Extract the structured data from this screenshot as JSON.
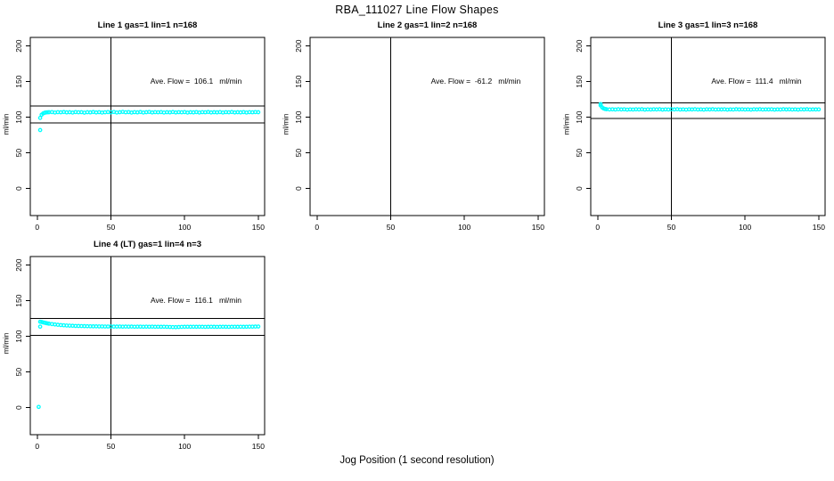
{
  "page_title": "RBA_111027  Line Flow Shapes",
  "xlabel": "Jog Position (1 second resolution)",
  "point_color": "#00FFFF",
  "line_color": "#000000",
  "chart_data": [
    {
      "id": "line1",
      "type": "scatter",
      "title": "Line 1 gas=1 lin=1 n=168",
      "annotation": "Ave. Flow =  106.1   ml/min",
      "ave_flow": 106.1,
      "line": 1,
      "gas": 1,
      "lin": 1,
      "n": 168,
      "ylabel": "ml/min",
      "x_ticks": [
        0,
        50,
        100,
        150
      ],
      "y_ticks": [
        0,
        50,
        100,
        150,
        200
      ],
      "xlim": [
        -4.7,
        154.3
      ],
      "ylim": [
        -38,
        212
      ],
      "vline_x": 50,
      "hlines": [
        115.5,
        92
      ],
      "grid": false,
      "marker": "open-circle",
      "points": [
        [
          2,
          82
        ],
        [
          2,
          99
        ],
        [
          3,
          103.5
        ],
        [
          4,
          105.3
        ],
        [
          5,
          106.2
        ],
        [
          6,
          106.7
        ],
        [
          7,
          106.9
        ],
        [
          8,
          107.0
        ],
        [
          10,
          107.2
        ],
        [
          12,
          106.6
        ],
        [
          14,
          107.1
        ],
        [
          16,
          106.9
        ],
        [
          18,
          107.3
        ],
        [
          20,
          106.8
        ],
        [
          22,
          107.0
        ],
        [
          24,
          106.5
        ],
        [
          26,
          107.2
        ],
        [
          28,
          106.9
        ],
        [
          30,
          107.1
        ],
        [
          32,
          106.4
        ],
        [
          34,
          107.0
        ],
        [
          36,
          106.8
        ],
        [
          38,
          107.3
        ],
        [
          40,
          106.7
        ],
        [
          42,
          107.1
        ],
        [
          44,
          106.5
        ],
        [
          46,
          106.9
        ],
        [
          48,
          107.2
        ],
        [
          50,
          106.8
        ],
        [
          52,
          107.4
        ],
        [
          54,
          106.6
        ],
        [
          56,
          107.0
        ],
        [
          58,
          107.5
        ],
        [
          60,
          106.9
        ],
        [
          62,
          107.2
        ],
        [
          64,
          106.5
        ],
        [
          66,
          107.1
        ],
        [
          68,
          106.8
        ],
        [
          70,
          107.3
        ],
        [
          72,
          106.6
        ],
        [
          74,
          107.0
        ],
        [
          76,
          107.4
        ],
        [
          78,
          106.7
        ],
        [
          80,
          107.1
        ],
        [
          82,
          106.9
        ],
        [
          84,
          107.2
        ],
        [
          86,
          106.6
        ],
        [
          88,
          107.0
        ],
        [
          90,
          106.8
        ],
        [
          92,
          107.3
        ],
        [
          94,
          106.7
        ],
        [
          96,
          107.1
        ],
        [
          98,
          106.9
        ],
        [
          100,
          107.2
        ],
        [
          102,
          106.5
        ],
        [
          104,
          107.0
        ],
        [
          106,
          106.8
        ],
        [
          108,
          107.2
        ],
        [
          110,
          106.6
        ],
        [
          112,
          107.1
        ],
        [
          114,
          106.9
        ],
        [
          116,
          107.3
        ],
        [
          118,
          106.7
        ],
        [
          120,
          107.0
        ],
        [
          122,
          106.8
        ],
        [
          124,
          107.2
        ],
        [
          126,
          106.6
        ],
        [
          128,
          107.1
        ],
        [
          130,
          106.9
        ],
        [
          132,
          107.3
        ],
        [
          134,
          106.7
        ],
        [
          136,
          107.0
        ],
        [
          138,
          106.8
        ],
        [
          140,
          107.2
        ],
        [
          142,
          106.6
        ],
        [
          144,
          107.1
        ],
        [
          146,
          106.9
        ],
        [
          148,
          107.2
        ],
        [
          150,
          107.0
        ]
      ]
    },
    {
      "id": "line2",
      "type": "scatter",
      "title": "Line 2 gas=1 lin=2 n=168",
      "annotation": "Ave. Flow =  -61.2   ml/min",
      "ave_flow": -61.2,
      "line": 2,
      "gas": 1,
      "lin": 2,
      "n": 168,
      "ylabel": "ml/min",
      "x_ticks": [
        0,
        50,
        100,
        150
      ],
      "y_ticks": [
        0,
        50,
        100,
        150,
        200
      ],
      "xlim": [
        -4.7,
        154.3
      ],
      "ylim": [
        -38,
        212
      ],
      "vline_x": 50,
      "hlines": [],
      "grid": false,
      "marker": "open-circle",
      "points": []
    },
    {
      "id": "line3",
      "type": "scatter",
      "title": "Line 3 gas=1 lin=3 n=168",
      "annotation": "Ave. Flow =  111.4   ml/min",
      "ave_flow": 111.4,
      "line": 3,
      "gas": 1,
      "lin": 3,
      "n": 168,
      "ylabel": "ml/min",
      "x_ticks": [
        0,
        50,
        100,
        150
      ],
      "y_ticks": [
        0,
        50,
        100,
        150,
        200
      ],
      "xlim": [
        -4.7,
        154.3
      ],
      "ylim": [
        -38,
        212
      ],
      "vline_x": 50,
      "hlines": [
        120,
        98.5
      ],
      "grid": false,
      "marker": "open-circle",
      "points": [
        [
          2,
          118.5
        ],
        [
          2,
          116.5
        ],
        [
          3,
          113.8
        ],
        [
          4,
          112.3
        ],
        [
          5,
          111.6
        ],
        [
          6,
          111.2
        ],
        [
          8,
          110.9
        ],
        [
          10,
          111.1
        ],
        [
          12,
          110.8
        ],
        [
          14,
          111.2
        ],
        [
          16,
          110.9
        ],
        [
          18,
          111.1
        ],
        [
          20,
          110.7
        ],
        [
          22,
          111.0
        ],
        [
          24,
          110.8
        ],
        [
          26,
          111.1
        ],
        [
          28,
          110.9
        ],
        [
          30,
          111.2
        ],
        [
          32,
          110.7
        ],
        [
          34,
          111.0
        ],
        [
          36,
          110.8
        ],
        [
          38,
          111.1
        ],
        [
          40,
          110.9
        ],
        [
          42,
          111.2
        ],
        [
          44,
          110.7
        ],
        [
          46,
          111.0
        ],
        [
          48,
          110.8
        ],
        [
          50,
          111.1
        ],
        [
          52,
          110.9
        ],
        [
          54,
          111.2
        ],
        [
          56,
          110.8
        ],
        [
          58,
          111.0
        ],
        [
          60,
          110.7
        ],
        [
          62,
          111.1
        ],
        [
          64,
          110.9
        ],
        [
          66,
          111.2
        ],
        [
          68,
          110.8
        ],
        [
          70,
          111.0
        ],
        [
          72,
          110.7
        ],
        [
          74,
          111.1
        ],
        [
          76,
          110.9
        ],
        [
          78,
          111.2
        ],
        [
          80,
          110.8
        ],
        [
          82,
          111.0
        ],
        [
          84,
          110.9
        ],
        [
          86,
          111.1
        ],
        [
          88,
          110.7
        ],
        [
          90,
          111.0
        ],
        [
          92,
          110.8
        ],
        [
          94,
          111.2
        ],
        [
          96,
          110.9
        ],
        [
          98,
          111.1
        ],
        [
          100,
          110.8
        ],
        [
          102,
          111.0
        ],
        [
          104,
          110.7
        ],
        [
          106,
          111.1
        ],
        [
          108,
          110.9
        ],
        [
          110,
          111.2
        ],
        [
          112,
          110.8
        ],
        [
          114,
          111.0
        ],
        [
          116,
          110.9
        ],
        [
          118,
          111.1
        ],
        [
          120,
          110.7
        ],
        [
          122,
          111.0
        ],
        [
          124,
          110.8
        ],
        [
          126,
          111.2
        ],
        [
          128,
          110.9
        ],
        [
          130,
          111.1
        ],
        [
          132,
          110.8
        ],
        [
          134,
          111.0
        ],
        [
          136,
          110.7
        ],
        [
          138,
          111.1
        ],
        [
          140,
          110.9
        ],
        [
          142,
          111.2
        ],
        [
          144,
          110.8
        ],
        [
          146,
          111.0
        ],
        [
          148,
          110.9
        ],
        [
          150,
          111.0
        ]
      ]
    },
    {
      "id": "line4",
      "type": "scatter",
      "title": "Line 4 (LT) gas=1 lin=4 n=3",
      "annotation": "Ave. Flow =  116.1   ml/min",
      "ave_flow": 116.1,
      "line": 4,
      "gas": 1,
      "lin": 4,
      "n": 3,
      "ylabel": "ml/min",
      "x_ticks": [
        0,
        50,
        100,
        150
      ],
      "y_ticks": [
        0,
        50,
        100,
        150,
        200
      ],
      "xlim": [
        -4.7,
        154.3
      ],
      "ylim": [
        -38,
        212
      ],
      "vline_x": 50,
      "hlines": [
        125,
        101.5
      ],
      "grid": false,
      "marker": "open-circle",
      "points": [
        [
          1,
          1
        ],
        [
          2,
          113.6
        ],
        [
          2,
          120.5
        ],
        [
          3,
          120.2
        ],
        [
          4,
          119.6
        ],
        [
          5,
          119.1
        ],
        [
          6,
          118.6
        ],
        [
          7,
          118.2
        ],
        [
          8,
          117.8
        ],
        [
          10,
          117.2
        ],
        [
          12,
          116.7
        ],
        [
          14,
          116.2
        ],
        [
          16,
          115.8
        ],
        [
          18,
          115.5
        ],
        [
          20,
          115.2
        ],
        [
          22,
          115.0
        ],
        [
          24,
          114.8
        ],
        [
          26,
          114.6
        ],
        [
          28,
          114.5
        ],
        [
          30,
          114.4
        ],
        [
          32,
          114.3
        ],
        [
          34,
          114.2
        ],
        [
          36,
          114.1
        ],
        [
          38,
          114.0
        ],
        [
          40,
          114.0
        ],
        [
          42,
          113.9
        ],
        [
          44,
          113.9
        ],
        [
          46,
          113.8
        ],
        [
          48,
          113.8
        ],
        [
          50,
          113.8
        ],
        [
          52,
          113.7
        ],
        [
          54,
          113.7
        ],
        [
          56,
          113.8
        ],
        [
          58,
          113.6
        ],
        [
          60,
          113.7
        ],
        [
          62,
          113.6
        ],
        [
          64,
          113.7
        ],
        [
          66,
          113.5
        ],
        [
          68,
          113.6
        ],
        [
          70,
          113.6
        ],
        [
          72,
          113.5
        ],
        [
          74,
          113.6
        ],
        [
          76,
          113.5
        ],
        [
          78,
          113.6
        ],
        [
          80,
          113.4
        ],
        [
          82,
          113.5
        ],
        [
          84,
          113.4
        ],
        [
          86,
          113.5
        ],
        [
          88,
          113.3
        ],
        [
          90,
          113.2
        ],
        [
          92,
          113.0
        ],
        [
          94,
          112.9
        ],
        [
          96,
          113.1
        ],
        [
          98,
          113.3
        ],
        [
          100,
          113.4
        ],
        [
          102,
          113.5
        ],
        [
          104,
          113.4
        ],
        [
          106,
          113.5
        ],
        [
          108,
          113.4
        ],
        [
          110,
          113.5
        ],
        [
          112,
          113.4
        ],
        [
          114,
          113.3
        ],
        [
          116,
          113.4
        ],
        [
          118,
          113.5
        ],
        [
          120,
          113.4
        ],
        [
          122,
          113.3
        ],
        [
          124,
          113.4
        ],
        [
          126,
          113.5
        ],
        [
          128,
          113.4
        ],
        [
          130,
          113.3
        ],
        [
          132,
          113.4
        ],
        [
          134,
          113.5
        ],
        [
          136,
          113.4
        ],
        [
          138,
          113.5
        ],
        [
          140,
          113.4
        ],
        [
          142,
          113.5
        ],
        [
          144,
          113.6
        ],
        [
          146,
          113.6
        ],
        [
          148,
          113.7
        ],
        [
          150,
          113.8
        ]
      ]
    }
  ]
}
